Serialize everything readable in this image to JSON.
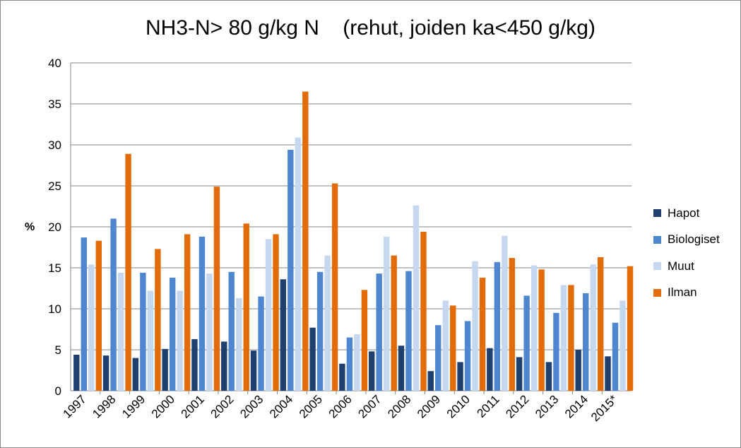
{
  "chart_data": {
    "type": "bar",
    "title": "NH3-N> 80 g/kg N    (rehut, joiden ka<450 g/kg)",
    "xlabel": "",
    "ylabel": "%",
    "ylim": [
      0,
      40
    ],
    "yticks": [
      "0",
      "5",
      "10",
      "15",
      "20",
      "25",
      "30",
      "35",
      "40"
    ],
    "grid": true,
    "legend_position": "right",
    "categories": [
      "1997",
      "1998",
      "1999",
      "2000",
      "2001",
      "2002",
      "2003",
      "2004",
      "2005",
      "2006",
      "2007",
      "2008",
      "2009",
      "2010",
      "2011",
      "2012",
      "2013",
      "2014",
      "2015*"
    ],
    "series": [
      {
        "name": "Hapot",
        "color": "#1F3F6E",
        "values": [
          4.4,
          4.3,
          4.0,
          5.1,
          6.3,
          6.0,
          4.9,
          13.6,
          7.7,
          3.3,
          4.8,
          5.5,
          2.4,
          3.5,
          5.2,
          4.1,
          3.5,
          5.0,
          4.2
        ]
      },
      {
        "name": "Biologiset",
        "color": "#4F86D0",
        "values": [
          18.7,
          21.0,
          14.4,
          13.8,
          18.8,
          14.5,
          11.5,
          29.4,
          14.5,
          6.5,
          14.3,
          14.6,
          8.0,
          8.5,
          15.7,
          11.6,
          9.5,
          11.9,
          8.3
        ]
      },
      {
        "name": "Muut",
        "color": "#C6D8F0",
        "values": [
          15.4,
          14.4,
          12.2,
          12.2,
          14.3,
          11.3,
          18.5,
          30.9,
          16.5,
          6.9,
          18.8,
          22.6,
          11.0,
          15.8,
          18.9,
          15.3,
          12.9,
          15.4,
          11.0
        ]
      },
      {
        "name": "Ilman",
        "color": "#E36C0A",
        "values": [
          18.3,
          28.9,
          17.3,
          19.1,
          24.9,
          20.4,
          19.1,
          36.5,
          25.3,
          12.3,
          16.5,
          19.4,
          10.4,
          13.8,
          16.2,
          14.8,
          12.9,
          16.3,
          15.2
        ]
      }
    ]
  }
}
